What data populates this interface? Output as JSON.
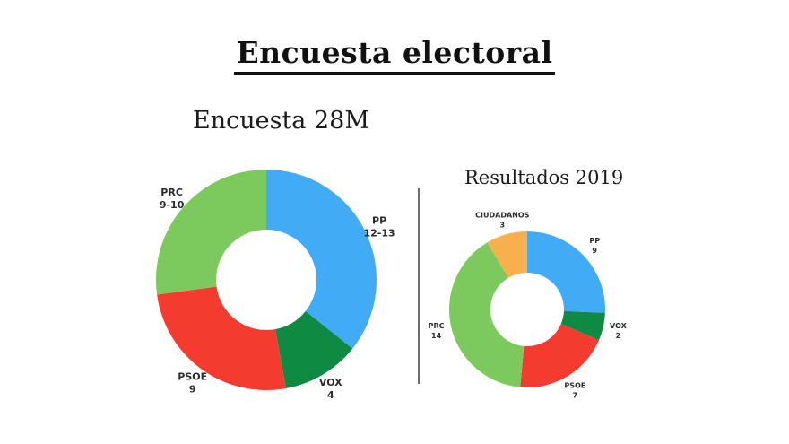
{
  "page": {
    "title": "Encuesta electoral"
  },
  "chart_data": [
    {
      "type": "pie",
      "subtype": "donut",
      "title": "Encuesta 28M",
      "total_seats": 35,
      "start_angle_deg": 0,
      "direction": "clockwise",
      "legend_position": "labels-around-slices",
      "segments": [
        {
          "label": "PP",
          "value_label": "12-13",
          "value": 12.5,
          "color": "#41abf5"
        },
        {
          "label": "VOX",
          "value_label": "4",
          "value": 4,
          "color": "#0e8a43"
        },
        {
          "label": "PSOE",
          "value_label": "9",
          "value": 9,
          "color": "#f43b30"
        },
        {
          "label": "PRC",
          "value_label": "9-10",
          "value": 9.5,
          "color": "#7cc95e"
        }
      ]
    },
    {
      "type": "pie",
      "subtype": "donut",
      "title": "Resultados 2019",
      "total_seats": 35,
      "start_angle_deg": 0,
      "direction": "clockwise",
      "legend_position": "labels-around-slices",
      "segments": [
        {
          "label": "PP",
          "value_label": "9",
          "value": 9,
          "color": "#41abf5"
        },
        {
          "label": "VOX",
          "value_label": "2",
          "value": 2,
          "color": "#0e8a43"
        },
        {
          "label": "PSOE",
          "value_label": "7",
          "value": 7,
          "color": "#f43b30"
        },
        {
          "label": "PRC",
          "value_label": "14",
          "value": 14,
          "color": "#7cc95e"
        },
        {
          "label": "CIUDADANOS",
          "value_label": "3",
          "value": 3,
          "color": "#f8b04f"
        }
      ]
    }
  ]
}
